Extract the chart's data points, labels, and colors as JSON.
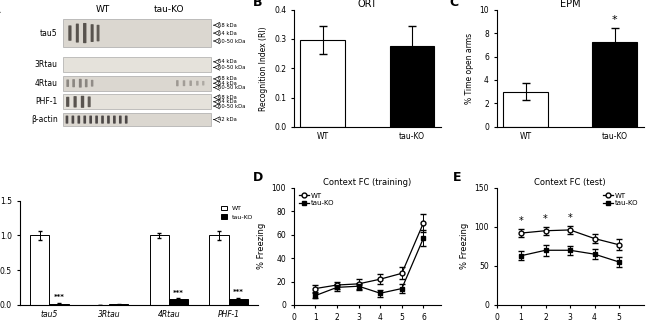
{
  "panel_A_kda_labels": [
    [
      "68 kDa",
      "64 kDa",
      "60-50 kDa"
    ],
    [
      "64 kDa",
      "60-50 kDa"
    ],
    [
      "68 kDa",
      "64 kDa",
      "60-50 kDa"
    ],
    [
      "68 kDa",
      "64 kDa",
      "60-50 kDa"
    ],
    [
      "42 kDa"
    ]
  ],
  "panel_A_bar_categories": [
    "tau5",
    "3Rtau",
    "4Rtau",
    "PHF-1"
  ],
  "panel_A_wt_vals": [
    1.0,
    0.0,
    1.0,
    1.0
  ],
  "panel_A_ko_vals": [
    0.02,
    0.01,
    0.08,
    0.08
  ],
  "panel_A_wt_err": [
    0.07,
    0.005,
    0.04,
    0.06
  ],
  "panel_A_ko_err": [
    0.005,
    0.005,
    0.015,
    0.02
  ],
  "panel_A_significance": [
    "***",
    "",
    "***",
    "***"
  ],
  "panel_B_wt_val": 0.295,
  "panel_B_ko_val": 0.275,
  "panel_B_wt_err": 0.048,
  "panel_B_ko_err": 0.068,
  "panel_C_wt_val": 3.0,
  "panel_C_ko_val": 7.2,
  "panel_C_wt_err": 0.7,
  "panel_C_ko_err": 1.2,
  "panel_D_time": [
    1,
    2,
    3,
    4,
    5,
    6
  ],
  "panel_D_wt": [
    14,
    17,
    18,
    22,
    27,
    70
  ],
  "panel_D_ko": [
    8,
    15,
    16,
    10,
    14,
    57
  ],
  "panel_D_wt_err": [
    3,
    3,
    4,
    4,
    5,
    8
  ],
  "panel_D_ko_err": [
    2,
    3,
    3,
    3,
    4,
    7
  ],
  "panel_E_time": [
    1,
    2,
    3,
    4,
    5
  ],
  "panel_E_wt": [
    92,
    95,
    96,
    85,
    77
  ],
  "panel_E_ko": [
    63,
    70,
    70,
    65,
    55
  ],
  "panel_E_wt_err": [
    5,
    5,
    5,
    6,
    7
  ],
  "panel_E_ko_err": [
    6,
    7,
    6,
    6,
    6
  ],
  "panel_E_sig_points": [
    1,
    2,
    3
  ],
  "blot_bg_light": "#e8e4de",
  "blot_bg_dark": "#c8c4bc"
}
